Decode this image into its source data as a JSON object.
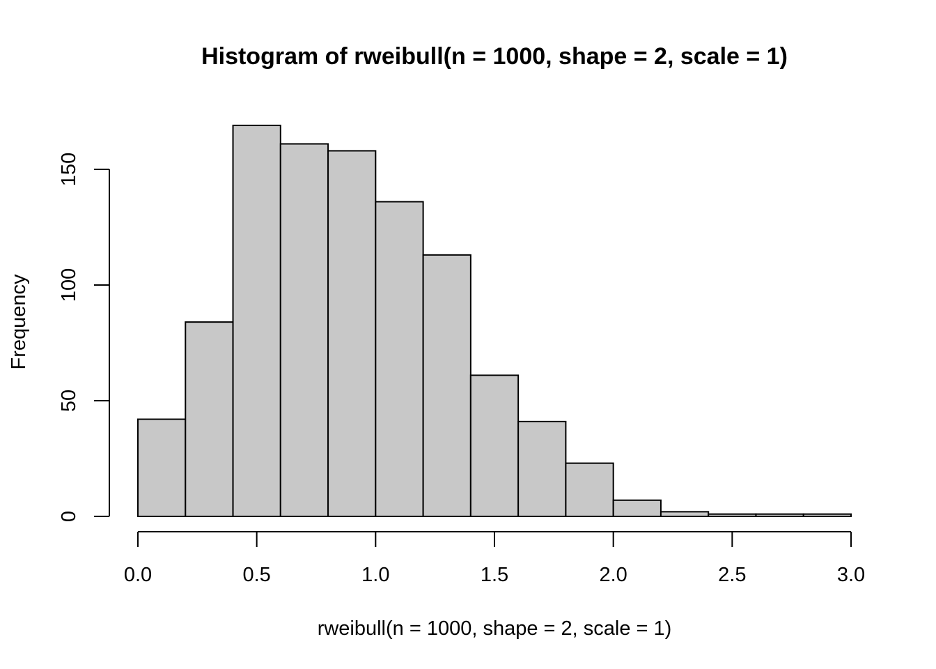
{
  "chart_data": {
    "type": "bar",
    "subtype": "histogram",
    "title": "Histogram of rweibull(n = 1000, shape = 2, scale = 1)",
    "xlabel": "rweibull(n = 1000, shape = 2, scale = 1)",
    "ylabel": "Frequency",
    "bin_edges": [
      0.0,
      0.2,
      0.4,
      0.6,
      0.8,
      1.0,
      1.2,
      1.4,
      1.6,
      1.8,
      2.0,
      2.2,
      2.4,
      2.6,
      2.8,
      3.0
    ],
    "values": [
      42,
      84,
      169,
      161,
      158,
      136,
      113,
      61,
      41,
      23,
      7,
      2,
      1,
      1,
      1
    ],
    "xlim": [
      0.0,
      3.0
    ],
    "ylim": [
      0,
      170
    ],
    "x_ticks": [
      0.0,
      0.5,
      1.0,
      1.5,
      2.0,
      2.5,
      3.0
    ],
    "x_tick_labels": [
      "0.0",
      "0.5",
      "1.0",
      "1.5",
      "2.0",
      "2.5",
      "3.0"
    ],
    "y_ticks": [
      0,
      50,
      100,
      150
    ],
    "y_tick_labels": [
      "0",
      "50",
      "100",
      "150"
    ],
    "grid": false,
    "legend": "none",
    "bar_color": "#c8c8c8",
    "edge_color": "#000000"
  }
}
